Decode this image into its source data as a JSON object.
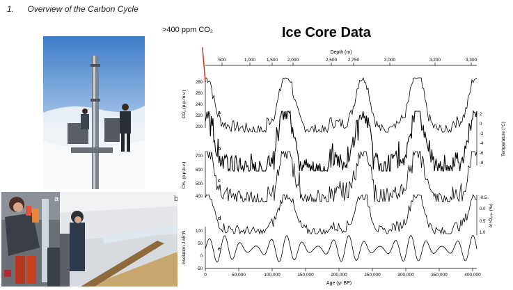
{
  "heading": {
    "number": "1.",
    "text": "Overview of the Carbon Cycle"
  },
  "callout": {
    "text": ">400 ppm CO₂"
  },
  "figure": {
    "title": "Ice Core Data",
    "panel_labels": {
      "a": "a",
      "b": "b"
    },
    "curve_labels": [
      "a",
      "b",
      "c",
      "d",
      "e"
    ],
    "top_axis": {
      "label": "Depth (m)",
      "ticks": [
        "500",
        "1,000",
        "1,500",
        "2,000",
        "2,500",
        "2,750",
        "3,000",
        "3,200",
        "3,300"
      ]
    },
    "bottom_axis": {
      "label": "Age (yr BP)",
      "ticks": [
        "0",
        "50,000",
        "100,000",
        "150,000",
        "200,000",
        "250,000",
        "300,000",
        "350,000",
        "400,000"
      ]
    },
    "left_axes": [
      {
        "label": "CO₂ (p.p.m.v.)",
        "ticks": [
          "280",
          "260",
          "240",
          "220",
          "200"
        ]
      },
      {
        "label": "CH₄ (p.p.b.v.)",
        "ticks": [
          "700",
          "600",
          "500",
          "400"
        ]
      },
      {
        "label": "Insolation J 65°N",
        "ticks": [
          "100",
          "50",
          "0",
          "-50"
        ]
      }
    ],
    "right_axes": [
      {
        "label": "Temperature (°C)",
        "ticks": [
          "2",
          "0",
          "-2",
          "-4",
          "-6",
          "-8"
        ]
      },
      {
        "label": "δ¹⁸Oₐₜₘ (‰)",
        "ticks": [
          "-0.5",
          "0.0",
          "0.5",
          "1.0"
        ]
      }
    ]
  }
}
